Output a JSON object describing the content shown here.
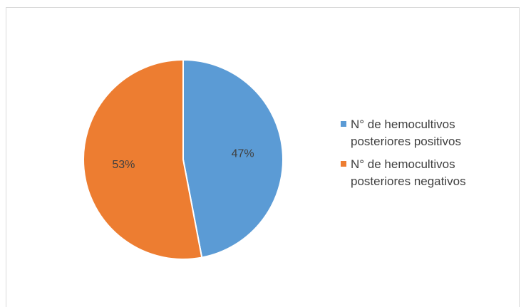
{
  "chart_data": {
    "type": "pie",
    "categories": [
      "N° de hemocultivos posteriores positivos",
      "N° de hemocultivos posteriores negativos"
    ],
    "values": [
      47,
      53
    ],
    "value_labels": [
      "47%",
      "53%"
    ],
    "colors": [
      "#5b9bd5",
      "#ed7d31"
    ],
    "legend": "right"
  }
}
